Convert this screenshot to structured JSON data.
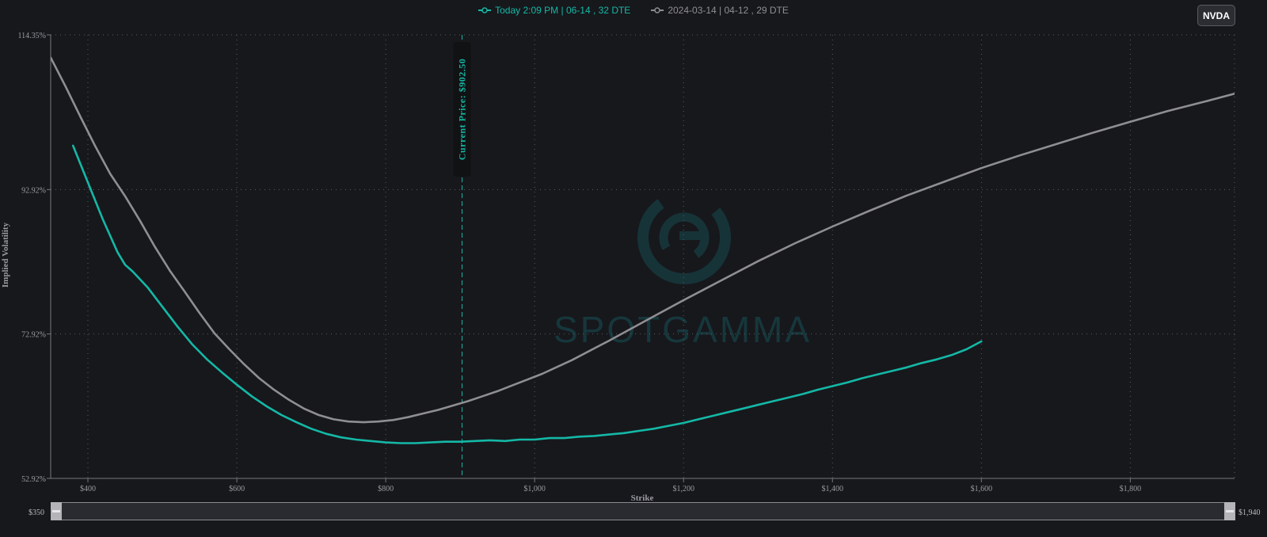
{
  "ticker": "NVDA",
  "legend": [
    {
      "label": "Today 2:09 PM | 06-14 , 32 DTE",
      "color": "#14b8a6"
    },
    {
      "label": "2024-03-14 | 04-12 , 29 DTE",
      "color": "#8e8e93"
    }
  ],
  "watermark": "SPOTGAMMA",
  "range_slider": {
    "min_label": "$350",
    "max_label": "$1,940"
  },
  "chart_data": {
    "type": "line",
    "xlabel": "Strike",
    "ylabel": "Implied Volatility",
    "xlim": [
      350,
      1940
    ],
    "ylim": [
      52.92,
      114.35
    ],
    "x_ticks": [
      400,
      600,
      800,
      1000,
      1200,
      1400,
      1600,
      1800
    ],
    "x_tick_labels": [
      "$400",
      "$600",
      "$800",
      "$1,000",
      "$1,200",
      "$1,400",
      "$1,600",
      "$1,800"
    ],
    "y_ticks": [
      52.92,
      72.92,
      92.92,
      114.35
    ],
    "y_tick_labels": [
      "52.92%",
      "72.92%",
      "92.92%",
      "114.35%"
    ],
    "grid": true,
    "legend_position": "top-center",
    "current_price": {
      "value": 902.5,
      "label": "Current Price: $902.50"
    },
    "series": [
      {
        "name": "Today 2:09 PM | 06-14 , 32 DTE",
        "color": "#14b8a6",
        "x": [
          380,
          400,
          420,
          440,
          450,
          460,
          480,
          500,
          520,
          540,
          560,
          580,
          600,
          620,
          640,
          660,
          680,
          700,
          720,
          740,
          760,
          780,
          800,
          820,
          840,
          860,
          880,
          900,
          920,
          940,
          960,
          980,
          1000,
          1020,
          1040,
          1060,
          1080,
          1100,
          1120,
          1140,
          1160,
          1180,
          1200,
          1220,
          1240,
          1260,
          1280,
          1300,
          1320,
          1340,
          1360,
          1380,
          1400,
          1420,
          1440,
          1460,
          1480,
          1500,
          1520,
          1540,
          1560,
          1580,
          1600
        ],
        "y": [
          99.0,
          93.9,
          88.8,
          84.2,
          82.5,
          81.6,
          79.4,
          76.7,
          74.0,
          71.5,
          69.4,
          67.6,
          65.9,
          64.3,
          62.9,
          61.7,
          60.7,
          59.8,
          59.1,
          58.6,
          58.3,
          58.1,
          57.9,
          57.8,
          57.8,
          57.9,
          58.0,
          58.0,
          58.1,
          58.2,
          58.1,
          58.3,
          58.3,
          58.5,
          58.5,
          58.7,
          58.8,
          59.0,
          59.2,
          59.5,
          59.8,
          60.2,
          60.6,
          61.1,
          61.6,
          62.1,
          62.6,
          63.1,
          63.6,
          64.1,
          64.6,
          65.2,
          65.7,
          66.2,
          66.8,
          67.3,
          67.8,
          68.3,
          68.9,
          69.4,
          70.0,
          70.8,
          71.9
        ]
      },
      {
        "name": "2024-03-14 | 04-12 , 29 DTE",
        "color": "#8e8e93",
        "x": [
          350,
          370,
          390,
          410,
          430,
          450,
          470,
          490,
          510,
          530,
          550,
          570,
          590,
          610,
          630,
          650,
          670,
          690,
          710,
          730,
          750,
          770,
          790,
          810,
          830,
          850,
          870,
          890,
          910,
          930,
          950,
          970,
          990,
          1010,
          1050,
          1100,
          1150,
          1200,
          1250,
          1300,
          1350,
          1400,
          1450,
          1500,
          1550,
          1600,
          1650,
          1700,
          1750,
          1800,
          1850,
          1900,
          1940
        ],
        "y": [
          111.2,
          107.2,
          103.0,
          98.9,
          95.1,
          92.0,
          88.6,
          85.0,
          81.7,
          78.8,
          75.8,
          73.0,
          70.8,
          68.7,
          66.8,
          65.2,
          63.8,
          62.6,
          61.7,
          61.1,
          60.8,
          60.7,
          60.8,
          61.0,
          61.4,
          61.9,
          62.4,
          63.0,
          63.6,
          64.3,
          65.0,
          65.8,
          66.6,
          67.4,
          69.3,
          72.0,
          74.8,
          77.6,
          80.3,
          83.0,
          85.5,
          87.8,
          90.0,
          92.1,
          94.0,
          95.9,
          97.6,
          99.2,
          100.8,
          102.3,
          103.8,
          105.1,
          106.2
        ]
      }
    ]
  }
}
